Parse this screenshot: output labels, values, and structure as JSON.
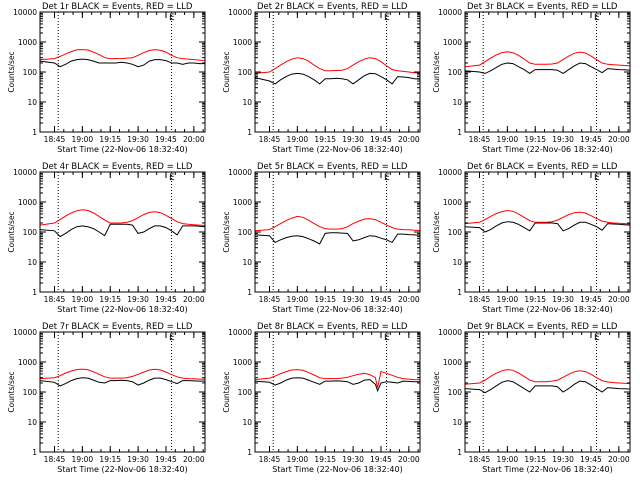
{
  "figure": {
    "xlabel": "Start Time (22-Nov-06 18:32:40)",
    "ylabel": "Counts/sec",
    "legend_marker": "E",
    "colors": {
      "events": "#000000",
      "lld": "#ff0000",
      "axes": "#000000",
      "background": "#ffffff"
    }
  },
  "chart_data": [
    {
      "type": "line",
      "title": "Det 1r BLACK = Events, RED = LLD",
      "x": [
        18.62,
        18.75,
        18.8,
        18.85,
        18.9,
        18.95,
        19.0,
        19.05,
        19.1,
        19.15,
        19.2,
        19.25,
        19.3,
        19.35,
        19.4,
        19.45,
        19.5,
        19.55,
        19.6,
        19.65,
        19.7,
        19.75,
        19.8,
        19.85,
        19.9,
        19.95,
        20.0,
        20.05,
        20.1
      ],
      "xticks": [
        "18:45",
        "19:00",
        "19:15",
        "19:30",
        "19:45",
        "20:00"
      ],
      "yscale": "log",
      "ylim": [
        1,
        10000
      ],
      "yticks": [
        "1",
        "10",
        "100",
        "1000",
        "10000"
      ],
      "vlines": [
        "18:47",
        "19:48"
      ],
      "series": [
        {
          "values": [
            230,
            200,
            150,
            180,
            230,
            260,
            270,
            260,
            230,
            200,
            200,
            200,
            200,
            210,
            200,
            180,
            150,
            170,
            230,
            260,
            260,
            240,
            200,
            200,
            180,
            200,
            200,
            190,
            190
          ]
        },
        {
          "values": [
            260,
            280,
            330,
            400,
            480,
            550,
            560,
            540,
            460,
            380,
            300,
            280,
            280,
            280,
            290,
            300,
            360,
            440,
            520,
            560,
            530,
            460,
            360,
            300,
            280,
            270,
            260,
            250,
            240
          ]
        }
      ]
    },
    {
      "type": "line",
      "title": "Det 2r BLACK = Events, RED = LLD",
      "x": [
        18.62,
        18.75,
        18.8,
        18.85,
        18.9,
        18.95,
        19.0,
        19.05,
        19.1,
        19.15,
        19.2,
        19.25,
        19.3,
        19.35,
        19.4,
        19.45,
        19.5,
        19.55,
        19.6,
        19.65,
        19.7,
        19.75,
        19.8,
        19.85,
        19.9,
        19.95,
        20.0,
        20.05,
        20.1
      ],
      "xticks": [
        "18:45",
        "19:00",
        "19:15",
        "19:30",
        "19:45",
        "20:00"
      ],
      "yscale": "log",
      "ylim": [
        1,
        10000
      ],
      "yticks": [
        "1",
        "10",
        "100",
        "1000",
        "10000"
      ],
      "vlines": [
        "18:47",
        "19:48"
      ],
      "series": [
        {
          "values": [
            65,
            50,
            40,
            55,
            70,
            85,
            90,
            85,
            70,
            55,
            40,
            60,
            60,
            62,
            60,
            55,
            40,
            55,
            75,
            90,
            88,
            70,
            55,
            40,
            70,
            68,
            65,
            60,
            58
          ]
        },
        {
          "values": [
            90,
            100,
            130,
            170,
            220,
            270,
            300,
            280,
            230,
            170,
            130,
            110,
            110,
            112,
            115,
            130,
            170,
            220,
            270,
            300,
            280,
            220,
            160,
            120,
            110,
            105,
            100,
            95,
            95
          ]
        }
      ]
    },
    {
      "type": "line",
      "title": "Det 3r BLACK = Events, RED = LLD",
      "x": [
        18.62,
        18.75,
        18.8,
        18.85,
        18.9,
        18.95,
        19.0,
        19.05,
        19.1,
        19.15,
        19.2,
        19.25,
        19.3,
        19.35,
        19.4,
        19.45,
        19.5,
        19.55,
        19.6,
        19.65,
        19.7,
        19.75,
        19.8,
        19.85,
        19.9,
        19.95,
        20.0,
        20.05,
        20.1
      ],
      "xticks": [
        "18:45",
        "19:00",
        "19:15",
        "19:30",
        "19:45",
        "20:00"
      ],
      "yscale": "log",
      "ylim": [
        1,
        10000
      ],
      "yticks": [
        "1",
        "10",
        "100",
        "1000",
        "10000"
      ],
      "vlines": [
        "18:47",
        "19:48"
      ],
      "series": [
        {
          "values": [
            110,
            100,
            90,
            110,
            140,
            180,
            200,
            190,
            150,
            120,
            90,
            120,
            120,
            120,
            120,
            115,
            90,
            120,
            160,
            200,
            190,
            150,
            120,
            95,
            130,
            125,
            120,
            118,
            115
          ]
        },
        {
          "values": [
            150,
            170,
            220,
            290,
            370,
            440,
            470,
            440,
            360,
            270,
            200,
            180,
            180,
            180,
            185,
            200,
            260,
            340,
            420,
            460,
            430,
            340,
            260,
            200,
            180,
            175,
            170,
            165,
            160
          ]
        }
      ]
    },
    {
      "type": "line",
      "title": "Det 4r BLACK = Events, RED = LLD",
      "x": [
        18.62,
        18.75,
        18.8,
        18.85,
        18.9,
        18.95,
        19.0,
        19.05,
        19.1,
        19.15,
        19.2,
        19.25,
        19.3,
        19.35,
        19.4,
        19.45,
        19.5,
        19.55,
        19.6,
        19.65,
        19.7,
        19.75,
        19.8,
        19.85,
        19.9,
        19.95,
        20.0,
        20.05,
        20.1
      ],
      "xticks": [
        "18:45",
        "19:00",
        "19:15",
        "19:30",
        "19:45",
        "20:00"
      ],
      "yscale": "log",
      "ylim": [
        1,
        10000
      ],
      "yticks": [
        "1",
        "10",
        "100",
        "1000",
        "10000"
      ],
      "vlines": [
        "18:47",
        "19:48"
      ],
      "series": [
        {
          "values": [
            120,
            110,
            70,
            90,
            120,
            150,
            160,
            150,
            130,
            100,
            75,
            180,
            180,
            180,
            180,
            170,
            90,
            100,
            130,
            160,
            160,
            140,
            110,
            80,
            160,
            160,
            160,
            155,
            150
          ]
        },
        {
          "values": [
            170,
            200,
            260,
            340,
            430,
            510,
            550,
            520,
            430,
            330,
            250,
            200,
            200,
            200,
            210,
            240,
            300,
            380,
            450,
            470,
            440,
            360,
            280,
            220,
            190,
            180,
            175,
            170,
            165
          ]
        }
      ]
    },
    {
      "type": "line",
      "title": "Det 5r BLACK = Events, RED = LLD",
      "x": [
        18.62,
        18.75,
        18.8,
        18.85,
        18.9,
        18.95,
        19.0,
        19.05,
        19.1,
        19.15,
        19.2,
        19.25,
        19.3,
        19.35,
        19.4,
        19.45,
        19.5,
        19.55,
        19.6,
        19.65,
        19.7,
        19.75,
        19.8,
        19.85,
        19.9,
        19.95,
        20.0,
        20.05,
        20.1
      ],
      "xticks": [
        "18:45",
        "19:00",
        "19:15",
        "19:30",
        "19:45",
        "20:00"
      ],
      "yscale": "log",
      "ylim": [
        1,
        10000
      ],
      "yticks": [
        "1",
        "10",
        "100",
        "1000",
        "10000"
      ],
      "vlines": [
        "18:47",
        "19:48"
      ],
      "series": [
        {
          "values": [
            80,
            75,
            45,
            55,
            65,
            72,
            75,
            70,
            60,
            50,
            40,
            90,
            95,
            95,
            92,
            90,
            50,
            55,
            65,
            75,
            72,
            62,
            55,
            45,
            85,
            85,
            82,
            80,
            78
          ]
        },
        {
          "values": [
            110,
            120,
            150,
            190,
            240,
            290,
            330,
            310,
            250,
            190,
            150,
            130,
            125,
            125,
            130,
            150,
            190,
            230,
            270,
            280,
            260,
            210,
            170,
            140,
            125,
            120,
            118,
            115,
            112
          ]
        }
      ]
    },
    {
      "type": "line",
      "title": "Det 6r BLACK = Events, RED = LLD",
      "x": [
        18.62,
        18.75,
        18.8,
        18.85,
        18.9,
        18.95,
        19.0,
        19.05,
        19.1,
        19.15,
        19.2,
        19.25,
        19.3,
        19.35,
        19.4,
        19.45,
        19.5,
        19.55,
        19.6,
        19.65,
        19.7,
        19.75,
        19.8,
        19.85,
        19.9,
        19.95,
        20.0,
        20.05,
        20.1
      ],
      "xticks": [
        "18:45",
        "19:00",
        "19:15",
        "19:30",
        "19:45",
        "20:00"
      ],
      "yscale": "log",
      "ylim": [
        1,
        10000
      ],
      "yticks": [
        "1",
        "10",
        "100",
        "1000",
        "10000"
      ],
      "vlines": [
        "18:47",
        "19:48"
      ],
      "series": [
        {
          "values": [
            150,
            140,
            100,
            120,
            160,
            200,
            220,
            210,
            180,
            140,
            110,
            200,
            200,
            200,
            200,
            190,
            110,
            130,
            170,
            210,
            210,
            180,
            150,
            115,
            190,
            185,
            180,
            175,
            170
          ]
        },
        {
          "values": [
            190,
            210,
            260,
            330,
            410,
            480,
            520,
            490,
            400,
            310,
            240,
            210,
            210,
            210,
            220,
            250,
            310,
            380,
            440,
            460,
            430,
            350,
            280,
            230,
            210,
            200,
            195,
            190,
            185
          ]
        }
      ]
    },
    {
      "type": "line",
      "title": "Det 7r BLACK = Events, RED = LLD",
      "x": [
        18.62,
        18.75,
        18.8,
        18.85,
        18.9,
        18.95,
        19.0,
        19.05,
        19.1,
        19.15,
        19.2,
        19.25,
        19.3,
        19.35,
        19.4,
        19.45,
        19.5,
        19.55,
        19.6,
        19.65,
        19.7,
        19.75,
        19.8,
        19.85,
        19.9,
        19.95,
        20.0,
        20.05,
        20.1
      ],
      "xticks": [
        "18:45",
        "19:00",
        "19:15",
        "19:30",
        "19:45",
        "20:00"
      ],
      "yscale": "log",
      "ylim": [
        1,
        10000
      ],
      "yticks": [
        "1",
        "10",
        "100",
        "1000",
        "10000"
      ],
      "vlines": [
        "18:47",
        "19:48"
      ],
      "series": [
        {
          "values": [
            240,
            210,
            160,
            190,
            240,
            280,
            300,
            290,
            250,
            210,
            200,
            240,
            240,
            245,
            240,
            220,
            170,
            200,
            250,
            290,
            290,
            260,
            220,
            190,
            240,
            240,
            235,
            230,
            230
          ]
        },
        {
          "values": [
            280,
            300,
            350,
            430,
            500,
            560,
            580,
            550,
            470,
            390,
            320,
            290,
            290,
            290,
            300,
            330,
            390,
            460,
            540,
            570,
            540,
            460,
            380,
            320,
            290,
            280,
            275,
            270,
            265
          ]
        }
      ]
    },
    {
      "type": "line",
      "title": "Det 8r BLACK = Events, RED = LLD",
      "x": [
        18.62,
        18.75,
        18.8,
        18.85,
        18.9,
        18.95,
        19.0,
        19.05,
        19.1,
        19.15,
        19.2,
        19.25,
        19.3,
        19.35,
        19.4,
        19.45,
        19.5,
        19.55,
        19.6,
        19.65,
        19.7,
        19.72,
        19.75,
        19.8,
        19.85,
        19.9,
        19.95,
        20.0,
        20.05,
        20.1
      ],
      "xticks": [
        "18:45",
        "19:00",
        "19:15",
        "19:30",
        "19:45",
        "20:00"
      ],
      "yscale": "log",
      "ylim": [
        1,
        10000
      ],
      "yticks": [
        "1",
        "10",
        "100",
        "1000",
        "10000"
      ],
      "vlines": [
        "18:47",
        "19:48"
      ],
      "series": [
        {
          "values": [
            230,
            210,
            170,
            200,
            250,
            290,
            300,
            290,
            250,
            210,
            180,
            230,
            230,
            235,
            230,
            220,
            180,
            200,
            250,
            260,
            180,
            110,
            200,
            220,
            210,
            200,
            230,
            225,
            220,
            220
          ]
        },
        {
          "values": [
            260,
            290,
            340,
            410,
            480,
            540,
            560,
            530,
            450,
            370,
            300,
            280,
            280,
            280,
            290,
            310,
            350,
            390,
            420,
            380,
            300,
            140,
            480,
            420,
            360,
            310,
            280,
            270,
            260,
            255
          ]
        }
      ]
    },
    {
      "type": "line",
      "title": "Det 9r BLACK = Events, RED = LLD",
      "x": [
        18.62,
        18.75,
        18.8,
        18.85,
        18.9,
        18.95,
        19.0,
        19.05,
        19.1,
        19.15,
        19.2,
        19.25,
        19.3,
        19.35,
        19.4,
        19.45,
        19.5,
        19.55,
        19.6,
        19.65,
        19.7,
        19.75,
        19.8,
        19.85,
        19.9,
        19.95,
        20.0,
        20.05,
        20.1
      ],
      "xticks": [
        "18:45",
        "19:00",
        "19:15",
        "19:30",
        "19:45",
        "20:00"
      ],
      "yscale": "log",
      "ylim": [
        1,
        10000
      ],
      "yticks": [
        "1",
        "10",
        "100",
        "1000",
        "10000"
      ],
      "vlines": [
        "18:47",
        "19:48"
      ],
      "series": [
        {
          "values": [
            130,
            120,
            95,
            120,
            160,
            210,
            240,
            220,
            170,
            130,
            100,
            160,
            160,
            160,
            160,
            150,
            100,
            130,
            180,
            230,
            220,
            170,
            130,
            100,
            140,
            135,
            130,
            128,
            125
          ]
        },
        {
          "values": [
            180,
            200,
            250,
            330,
            420,
            510,
            560,
            530,
            430,
            330,
            250,
            220,
            220,
            220,
            230,
            250,
            310,
            390,
            470,
            510,
            480,
            390,
            300,
            240,
            215,
            205,
            200,
            195,
            190
          ]
        }
      ]
    }
  ]
}
